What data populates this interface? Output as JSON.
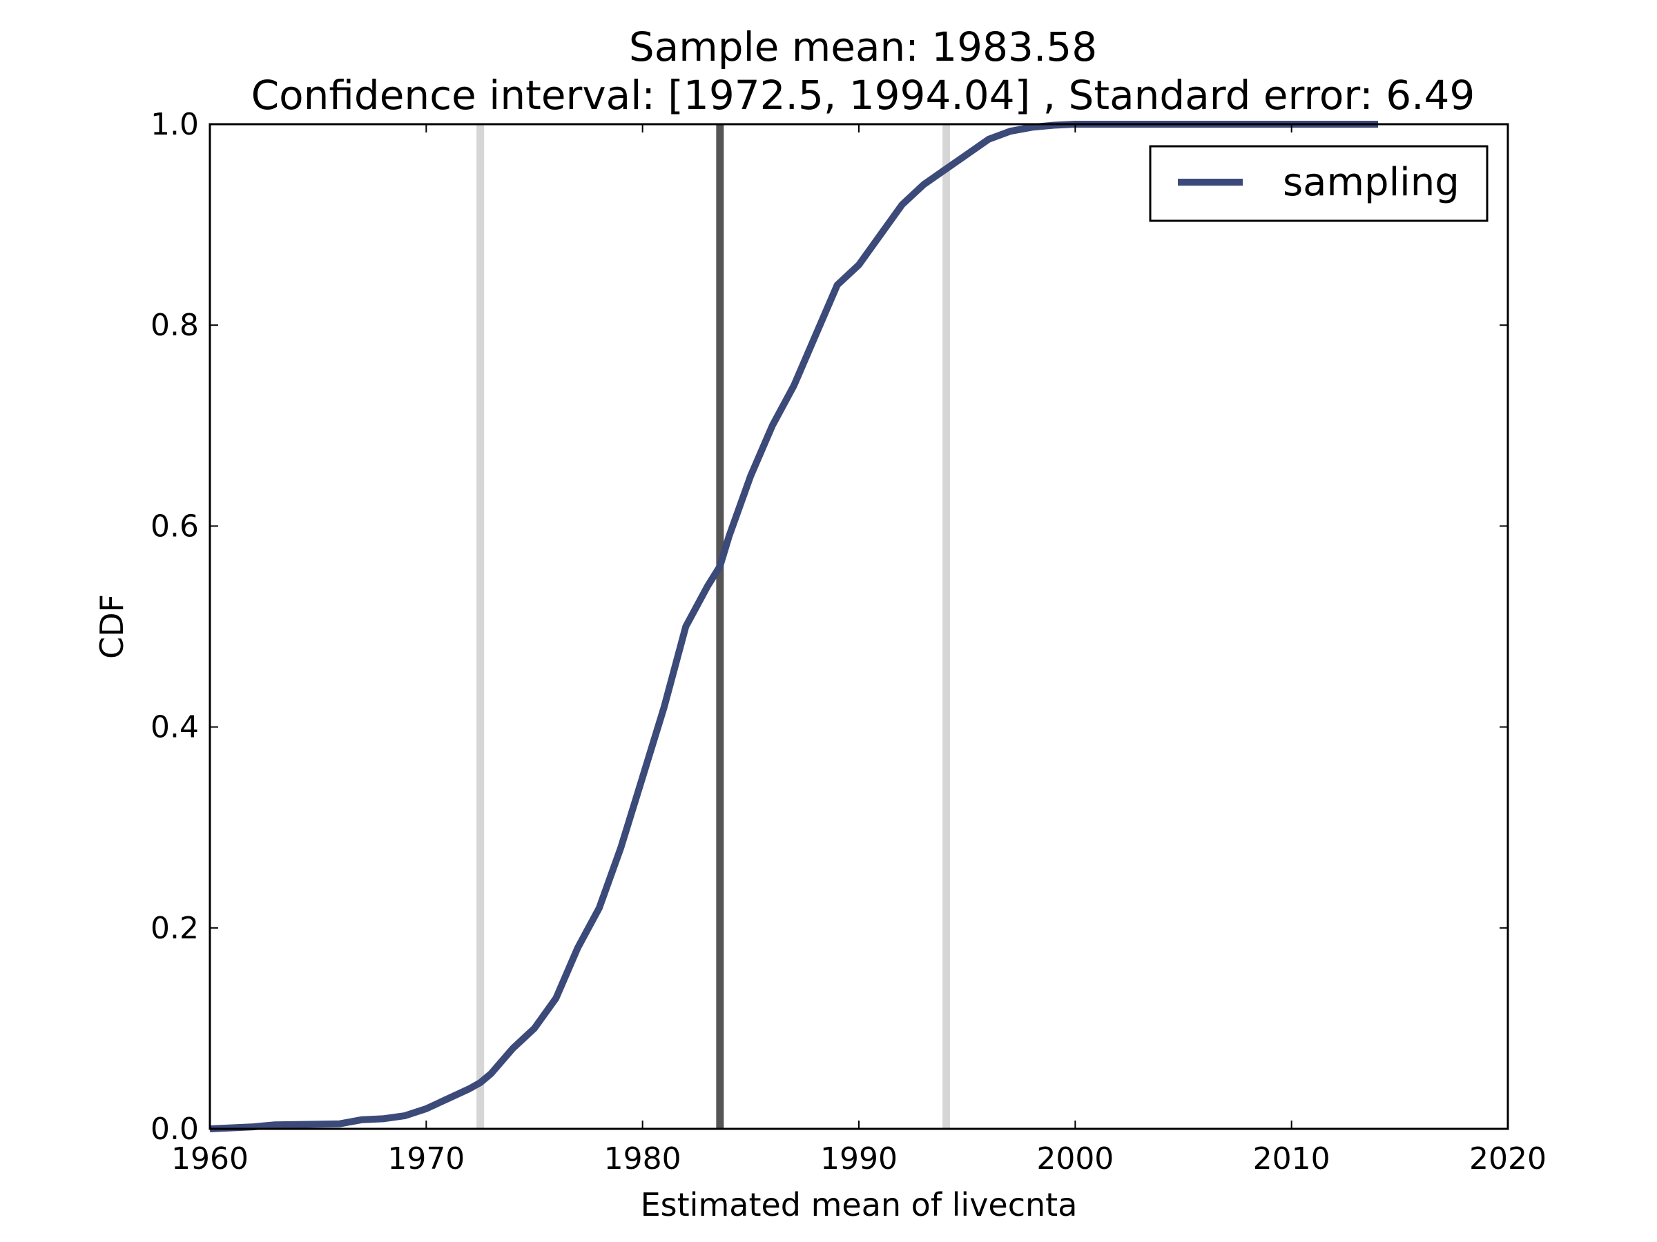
{
  "chart_data": {
    "type": "line",
    "title_lines": [
      "Sample mean: 1983.58",
      "Confidence interval: [1972.5, 1994.04] , Standard error: 6.49"
    ],
    "xlabel": "Estimated mean of livecnta",
    "ylabel": "CDF",
    "xlim": [
      1960,
      2020
    ],
    "ylim": [
      0.0,
      1.0
    ],
    "xticks": [
      1960,
      1970,
      1980,
      1990,
      2000,
      2010,
      2020
    ],
    "yticks": [
      0.0,
      0.2,
      0.4,
      0.6,
      0.8,
      1.0
    ],
    "ytick_labels": [
      "0.0",
      "0.2",
      "0.4",
      "0.6",
      "0.8",
      "1.0"
    ],
    "grid": false,
    "legend": {
      "position": "top-right",
      "entries": [
        "sampling"
      ]
    },
    "vlines": [
      {
        "x": 1972.5,
        "color": "#d6d6d6",
        "role": "ci-lower"
      },
      {
        "x": 1983.58,
        "color": "#555555",
        "role": "mean"
      },
      {
        "x": 1994.04,
        "color": "#d6d6d6",
        "role": "ci-upper"
      }
    ],
    "series": [
      {
        "name": "sampling",
        "color": "#3c4a7a",
        "x": [
          1960,
          1962,
          1963,
          1966,
          1967,
          1968,
          1969,
          1970,
          1971,
          1972,
          1972.5,
          1973,
          1974,
          1975,
          1976,
          1977,
          1978,
          1979,
          1980,
          1981,
          1982,
          1983,
          1983.58,
          1984,
          1985,
          1986,
          1987,
          1988,
          1989,
          1990,
          1991,
          1992,
          1993,
          1994,
          1995,
          1996,
          1997,
          1998,
          1999,
          2000,
          2005,
          2010,
          2014
        ],
        "y": [
          0.0,
          0.002,
          0.004,
          0.005,
          0.009,
          0.01,
          0.013,
          0.02,
          0.03,
          0.04,
          0.046,
          0.055,
          0.08,
          0.1,
          0.13,
          0.18,
          0.22,
          0.28,
          0.35,
          0.42,
          0.5,
          0.54,
          0.56,
          0.59,
          0.65,
          0.7,
          0.74,
          0.79,
          0.84,
          0.86,
          0.89,
          0.92,
          0.94,
          0.955,
          0.97,
          0.985,
          0.993,
          0.997,
          0.999,
          1.0,
          1.0,
          1.0,
          1.0
        ]
      }
    ]
  }
}
